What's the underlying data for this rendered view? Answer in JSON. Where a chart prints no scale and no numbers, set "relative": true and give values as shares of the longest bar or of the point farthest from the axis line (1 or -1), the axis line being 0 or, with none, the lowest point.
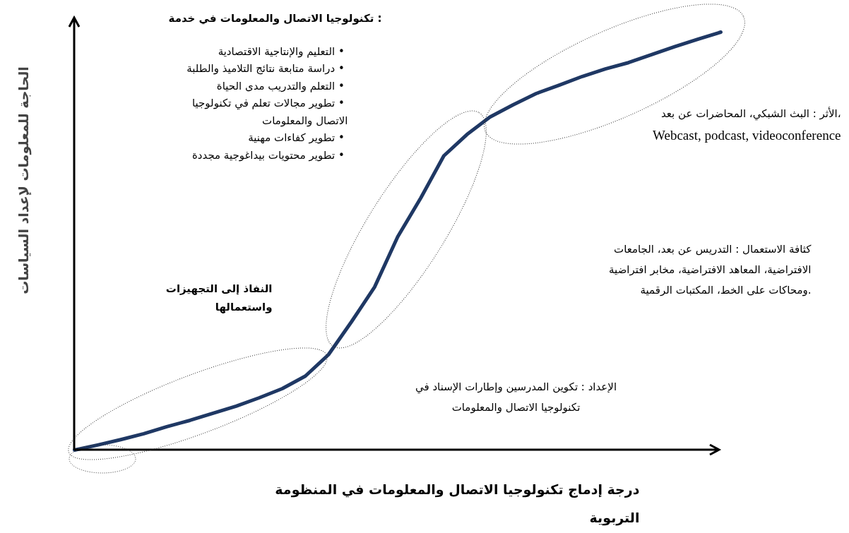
{
  "chart_data": {
    "type": "line",
    "relative": true,
    "color": "#1f3864",
    "categories": [
      null,
      null,
      null,
      null,
      null,
      null,
      null,
      null,
      null,
      null,
      null,
      null,
      null,
      null,
      null,
      null,
      null,
      null,
      null,
      null,
      null,
      null,
      null,
      null,
      null,
      null,
      null,
      null,
      null
    ],
    "values": [
      0,
      0.012,
      0.025,
      0.039,
      0.056,
      0.071,
      0.088,
      0.105,
      0.125,
      0.147,
      0.177,
      0.228,
      0.307,
      0.39,
      0.51,
      0.603,
      0.704,
      0.755,
      0.797,
      0.826,
      0.853,
      0.873,
      0.894,
      0.912,
      0.927,
      0.946,
      0.965,
      0.983,
      1
    ],
    "xlabel": "درجة إدماج تكنولوجيا الاتصال والمعلومات في المنظومة\nالتربوية",
    "ylabel": "الحاجة للمعلومات لإعداد السياسات",
    "annotations": [
      "تكنولوجيا الاتصال والمعلومات في خدمة :",
      "التعليم والإنتاجية الاقتصادية  •\nدراسة متابعة نتائج التلاميذ والطلبة  •\nالتعلم والتدريب مدى الحياة  •\nتطوير مجالات تعلم في تكنولوجيا  •\nالاتصال والمعلومات\nتطوير كفاءات مهنية  •\nتطوير محتويات بيداغوجية مجددة  •",
      "الأثر : البث الشبكي، المحاضرات عن بعد،\nWebcast, podcast, videoconference",
      "كثافة الاستعمال : التدريس عن بعد، الجامعات\nالافتراضية، المعاهد الافتراضية، مخابر افتراضية\nومحاكات على الخط، المكتبات الرقمية.",
      "النفاذ إلى التجهيزات\nواستعمالها",
      "الإعداد : تكوين المدرسين وإطارات الإسناد في\nتكنولوجيا الاتصال والمعلومات"
    ]
  }
}
